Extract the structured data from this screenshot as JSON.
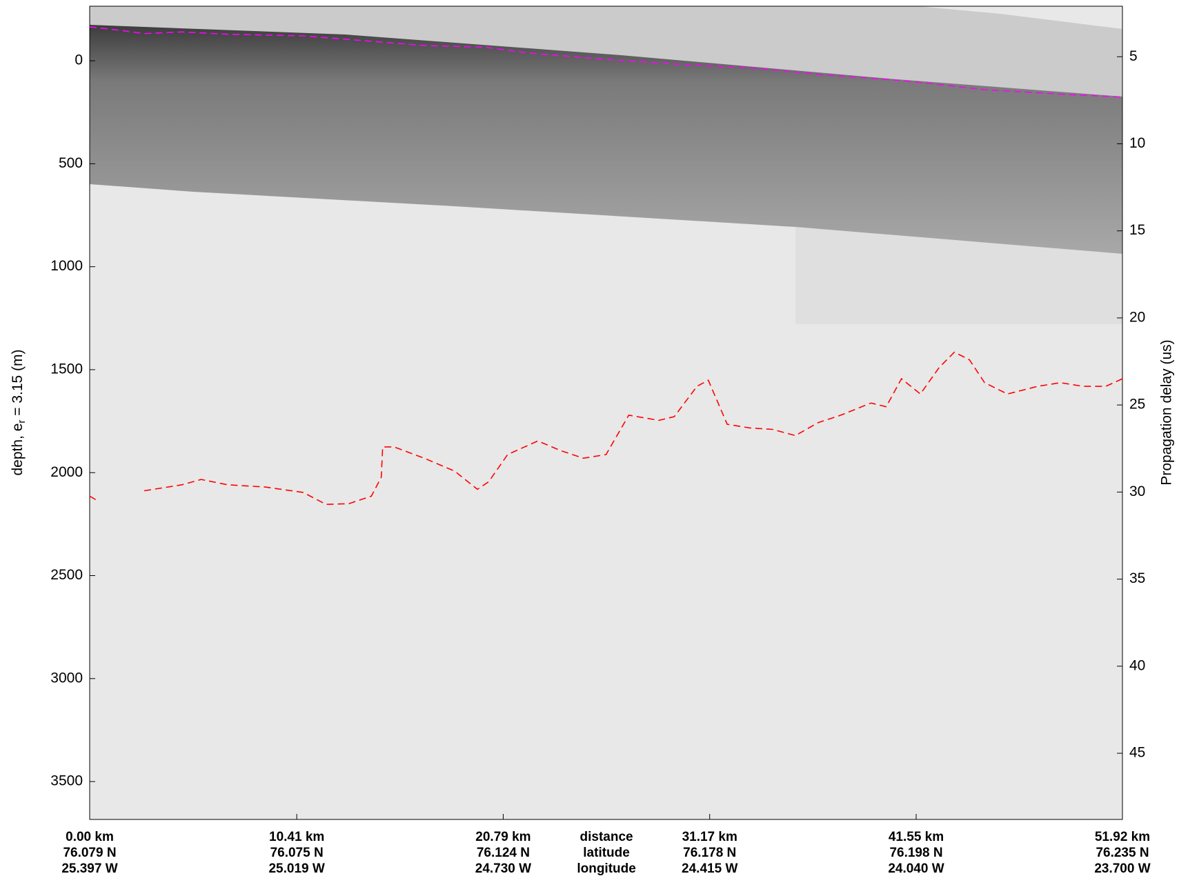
{
  "chart_data": {
    "type": "echogram",
    "y_label": [
      "depth, e",
      "r",
      " = 3.15 (m)"
    ],
    "y2_label": "Propagation delay (us)",
    "ylim": [
      3684,
      -265
    ],
    "yticks": [
      0,
      500,
      1000,
      1500,
      2000,
      2500,
      3000,
      3500
    ],
    "y2lim": [
      48.8,
      2.1
    ],
    "y2ticks": [
      5,
      10,
      15,
      20,
      25,
      30,
      35,
      40,
      45
    ],
    "xlim": [
      0,
      51.92
    ],
    "xticks": [
      {
        "value": 0,
        "label": "0.00 km"
      },
      {
        "value": 10.41,
        "label": "10.41 km"
      },
      {
        "value": 20.79,
        "label": "20.79 km"
      },
      {
        "value": 31.17,
        "label": "31.17 km"
      },
      {
        "value": 41.55,
        "label": "41.55 km"
      },
      {
        "value": 51.92,
        "label": "51.92 km"
      }
    ],
    "latitudes": [
      "76.079 N",
      "76.075 N",
      "76.124 N",
      "76.178 N",
      "76.198 N",
      "76.235 N"
    ],
    "longitudes": [
      "25.397 W",
      "25.019 W",
      "24.730 W",
      "24.415 W",
      "24.040 W",
      "23.700 W"
    ],
    "row_labels": [
      "distance",
      "latitude",
      "longitude"
    ],
    "series": [
      {
        "color": "#ff00ff",
        "x": [
          0,
          1.6,
          2.74,
          4.64,
          6.93,
          10.73,
          14.54,
          16.82,
          19.87,
          22.15,
          25.96,
          29.77,
          33.57,
          36.62,
          41.19,
          44.99,
          48.8,
          51.92
        ],
        "values": [
          -165,
          -147,
          -132,
          -140,
          -129,
          -121,
          -92,
          -74,
          -66,
          -37,
          -7,
          18,
          37,
          66,
          99,
          140,
          162,
          176
        ]
      },
      {
        "color": "#ff0000",
        "x": [
          0,
          0.46,
          1.6,
          2.74,
          4.64,
          5.6,
          6.93,
          8.83,
          10.73,
          11.88,
          13.02,
          14.16,
          14.66,
          14.73,
          15.3,
          16.82,
          18.35,
          19.49,
          20.06,
          21.01,
          22.53,
          23.68,
          24.82,
          25.96,
          27.1,
          28.62,
          29.39,
          30.53,
          31.1,
          32.05,
          33.19,
          34.33,
          35.48,
          36.62,
          37.76,
          39.28,
          40.04,
          40.81,
          41.76,
          42.71,
          43.47,
          44.23,
          44.99,
          46.14,
          47.66,
          48.8,
          49.94,
          51.08,
          51.92
        ],
        "values": [
          2114,
          2140,
          null,
          2088,
          2059,
          2033,
          2059,
          2070,
          2096,
          2154,
          2151,
          2114,
          2022,
          1875,
          1875,
          1930,
          1993,
          2081,
          2044,
          1912,
          1846,
          1893,
          1930,
          1912,
          1721,
          1746,
          1728,
          1581,
          1551,
          1765,
          1783,
          1790,
          1820,
          1757,
          1721,
          1662,
          1680,
          1544,
          1618,
          1489,
          1415,
          1452,
          1563,
          1618,
          1581,
          1563,
          1581,
          1581,
          1544
        ]
      }
    ]
  }
}
